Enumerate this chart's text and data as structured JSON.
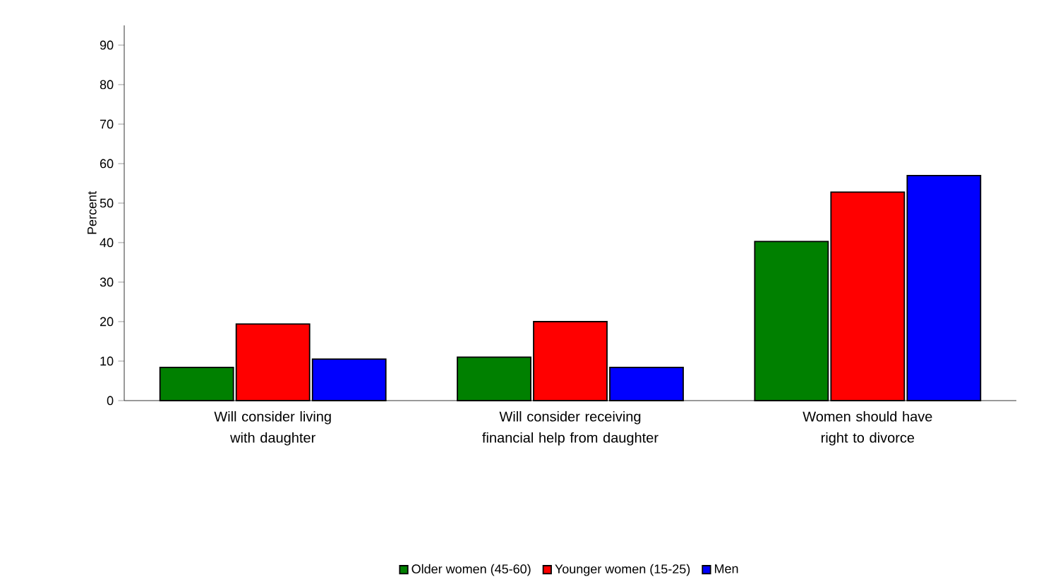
{
  "chart_data": {
    "type": "bar",
    "ylabel": "Percent",
    "categories": [
      "Will consider living with daughter",
      "Will consider receiving financial help from daughter",
      "Women should have right to divorce"
    ],
    "series": [
      {
        "name": "Older women (45-60)",
        "color": "#008000",
        "values": [
          8.4,
          11,
          40.3
        ]
      },
      {
        "name": "Younger women (15-25)",
        "color": "#ff0000",
        "values": [
          19.4,
          20,
          52.8
        ]
      },
      {
        "name": "Men",
        "color": "#0000ff",
        "values": [
          10.5,
          8.4,
          57
        ]
      }
    ],
    "ylim": [
      0,
      95
    ],
    "yticks": [
      0,
      10,
      20,
      30,
      40,
      50,
      60,
      70,
      80,
      90
    ],
    "grid": false,
    "legend": "bottom"
  }
}
